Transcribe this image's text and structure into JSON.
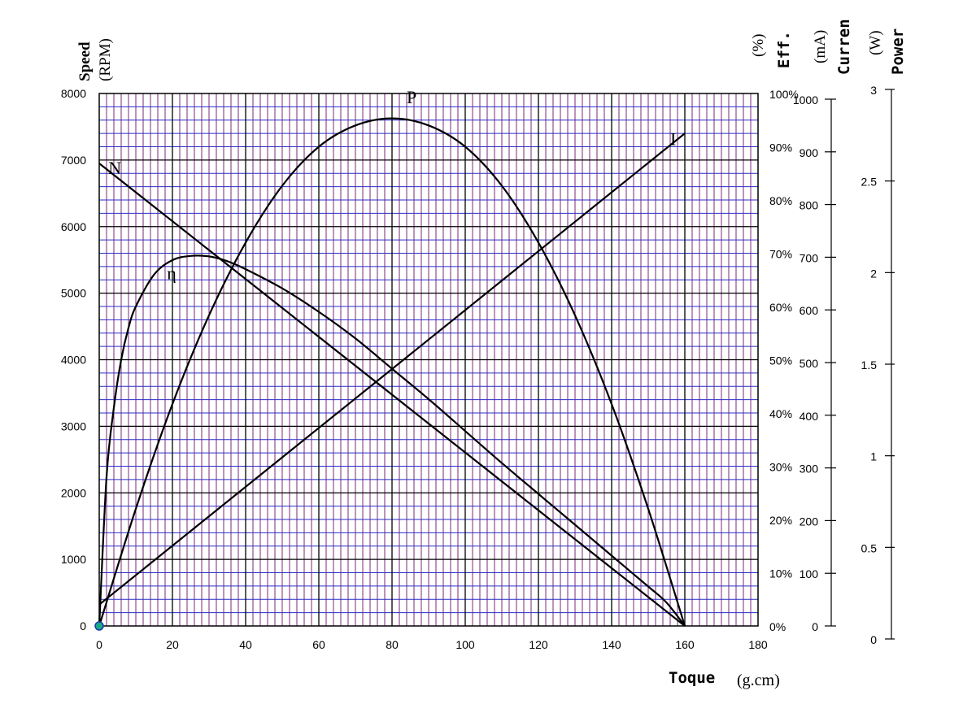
{
  "chart_data": {
    "type": "line",
    "xlabel": "Toque",
    "xunit": "(g.cm)",
    "xlim": [
      0,
      180
    ],
    "x_ticks": [
      "0",
      "20",
      "40",
      "60",
      "80",
      "100",
      "120",
      "140",
      "160",
      "180"
    ],
    "axes": {
      "speed": {
        "label": "Speed",
        "unit": "(RPM)",
        "range": [
          0,
          8000
        ],
        "ticks": [
          "0",
          "1000",
          "2000",
          "3000",
          "4000",
          "5000",
          "6000",
          "7000",
          "8000"
        ]
      },
      "efficiency": {
        "label": "Eff.",
        "unit": "(%)",
        "range": [
          0,
          100
        ],
        "ticks": [
          "0%",
          "10%",
          "20%",
          "30%",
          "40%",
          "50%",
          "60%",
          "70%",
          "80%",
          "90%",
          "100%"
        ]
      },
      "current": {
        "label": "Curren",
        "unit": "(mA)",
        "range": [
          0,
          1000
        ],
        "ticks": [
          "0",
          "100",
          "200",
          "300",
          "400",
          "500",
          "600",
          "700",
          "800",
          "900",
          "1000"
        ]
      },
      "power": {
        "label": "Power",
        "unit": "(W)",
        "range": [
          0,
          3
        ],
        "ticks": [
          "0",
          "0.5",
          "1",
          "1.5",
          "2",
          "2.5",
          "3"
        ]
      }
    },
    "grid": true,
    "series": [
      {
        "name": "N",
        "axis": "speed",
        "x": [
          0,
          160
        ],
        "y": [
          6950,
          0
        ]
      },
      {
        "name": "I",
        "axis": "current",
        "x": [
          0,
          160
        ],
        "y": [
          40,
          925
        ]
      },
      {
        "name": "P",
        "axis": "power",
        "x": [
          0,
          10,
          20,
          30,
          40,
          50,
          60,
          70,
          80,
          90,
          100,
          110,
          120,
          130,
          140,
          150,
          160
        ],
        "y": [
          0,
          0.66,
          1.25,
          1.75,
          2.16,
          2.48,
          2.7,
          2.82,
          2.86,
          2.82,
          2.7,
          2.48,
          2.16,
          1.75,
          1.25,
          0.66,
          0
        ]
      },
      {
        "name": "η",
        "axis": "efficiency",
        "x": [
          0,
          2,
          4,
          6,
          8,
          10,
          15,
          20,
          25,
          30,
          35,
          40,
          50,
          60,
          70,
          80,
          90,
          100,
          110,
          120,
          130,
          140,
          150,
          155,
          160
        ],
        "y": [
          0,
          28,
          41,
          50,
          56,
          60,
          66,
          68.7,
          69.5,
          69.4,
          68.5,
          67,
          63.4,
          59,
          54,
          48.3,
          42.6,
          36.6,
          30.6,
          24.8,
          19,
          13.2,
          7.4,
          4.4,
          0
        ]
      }
    ],
    "highlight_point": {
      "x": 0,
      "y": 0,
      "color": "#1aa88a"
    }
  },
  "colors": {
    "major_grid": "#000000",
    "minor_grid_vertical": "#7a2a78",
    "minor_grid_horizontal": "#2b2bc8",
    "curves": "#000000"
  }
}
